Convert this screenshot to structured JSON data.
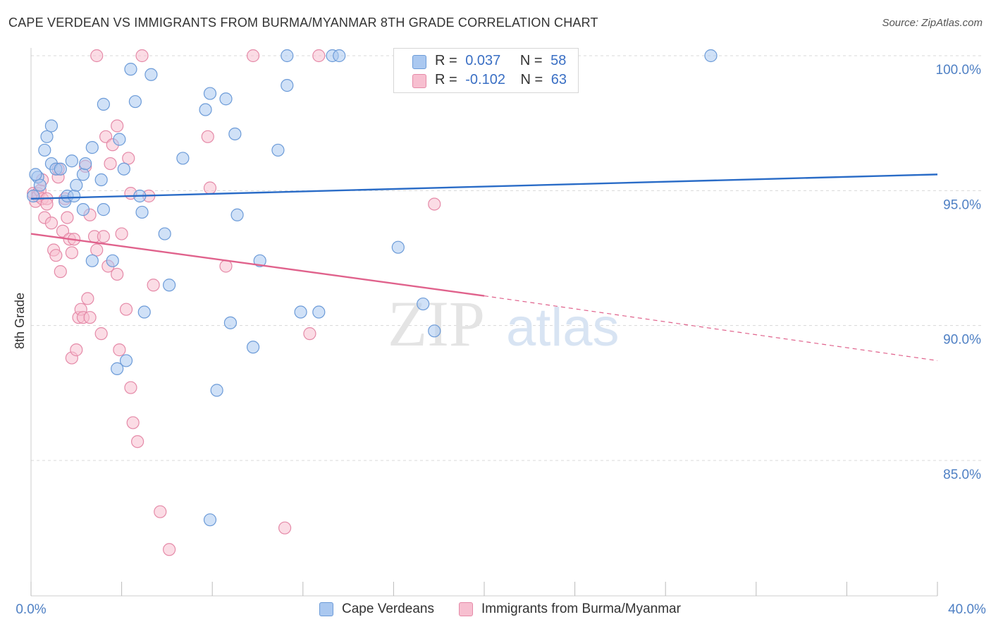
{
  "header": {
    "title": "CAPE VERDEAN VS IMMIGRANTS FROM BURMA/MYANMAR 8TH GRADE CORRELATION CHART",
    "source": "Source: ZipAtlas.com"
  },
  "legend": {
    "series1": {
      "r_label": "R =",
      "r_value": "0.037",
      "n_label": "N =",
      "n_value": "58"
    },
    "series2": {
      "r_label": "R =",
      "r_value": "-0.102",
      "n_label": "N =",
      "n_value": "63"
    }
  },
  "bottom_legend": {
    "series1": "Cape Verdeans",
    "series2": "Immigrants from Burma/Myanmar"
  },
  "watermark": {
    "zip": "ZIP",
    "atlas": "atlas"
  },
  "colors": {
    "blue_fill": "#aac8f0",
    "blue_stroke": "#6c9bd8",
    "blue_line": "#2a6cc7",
    "pink_fill": "#f7bfd0",
    "pink_stroke": "#e58aa8",
    "pink_line": "#e0628c",
    "grid": "#d8d8d8",
    "tick_text": "#4f80c4"
  },
  "chart_data": {
    "type": "scatter",
    "title": "CAPE VERDEAN VS IMMIGRANTS FROM BURMA/MYANMAR 8TH GRADE CORRELATION CHART",
    "xlabel": "",
    "ylabel": "8th Grade",
    "xlim": [
      0,
      40
    ],
    "ylim": [
      80.5,
      101
    ],
    "x_tick_labels": [
      "0.0%",
      "40.0%"
    ],
    "y_ticks": [
      85,
      90,
      95,
      100
    ],
    "y_tick_labels": [
      "85.0%",
      "90.0%",
      "95.0%",
      "100.0%"
    ],
    "grid": true,
    "series": [
      {
        "name": "Cape Verdeans",
        "R": 0.037,
        "N": 58,
        "trend": {
          "x": [
            0,
            40
          ],
          "y": [
            94.7,
            95.6
          ],
          "style": "solid"
        },
        "points": [
          [
            0.1,
            94.8
          ],
          [
            0.3,
            95.5
          ],
          [
            0.4,
            95.2
          ],
          [
            0.6,
            96.5
          ],
          [
            0.7,
            97.0
          ],
          [
            0.9,
            96.0
          ],
          [
            0.9,
            97.4
          ],
          [
            1.1,
            95.8
          ],
          [
            1.3,
            95.8
          ],
          [
            1.5,
            94.6
          ],
          [
            1.6,
            94.8
          ],
          [
            1.8,
            96.1
          ],
          [
            1.9,
            94.8
          ],
          [
            2.0,
            95.2
          ],
          [
            2.3,
            95.6
          ],
          [
            2.3,
            94.3
          ],
          [
            2.4,
            96.0
          ],
          [
            2.7,
            96.6
          ],
          [
            2.7,
            92.4
          ],
          [
            3.1,
            95.4
          ],
          [
            3.2,
            94.3
          ],
          [
            3.2,
            98.2
          ],
          [
            3.6,
            92.4
          ],
          [
            3.8,
            88.4
          ],
          [
            3.9,
            96.9
          ],
          [
            4.1,
            95.8
          ],
          [
            4.2,
            88.7
          ],
          [
            4.4,
            99.5
          ],
          [
            4.6,
            98.3
          ],
          [
            4.8,
            94.8
          ],
          [
            4.9,
            94.2
          ],
          [
            5.0,
            90.5
          ],
          [
            5.3,
            99.3
          ],
          [
            5.9,
            93.4
          ],
          [
            6.1,
            91.5
          ],
          [
            6.7,
            96.2
          ],
          [
            7.7,
            98.0
          ],
          [
            7.9,
            98.6
          ],
          [
            7.9,
            82.8
          ],
          [
            8.2,
            87.6
          ],
          [
            8.6,
            98.4
          ],
          [
            8.8,
            90.1
          ],
          [
            9.0,
            97.1
          ],
          [
            9.1,
            94.1
          ],
          [
            9.8,
            89.2
          ],
          [
            10.1,
            92.4
          ],
          [
            10.9,
            96.5
          ],
          [
            11.3,
            98.9
          ],
          [
            11.3,
            100.0
          ],
          [
            11.9,
            90.5
          ],
          [
            12.7,
            90.5
          ],
          [
            13.3,
            100.0
          ],
          [
            13.6,
            100.0
          ],
          [
            16.2,
            92.9
          ],
          [
            17.3,
            90.8
          ],
          [
            17.8,
            89.8
          ],
          [
            30.0,
            100.0
          ],
          [
            0.2,
            95.6
          ]
        ]
      },
      {
        "name": "Immigrants from Burma/Myanmar",
        "R": -0.102,
        "N": 63,
        "trend": {
          "x": [
            0,
            20
          ],
          "y": [
            93.4,
            91.1
          ],
          "style": "solid",
          "dashed_extension_to": [
            40,
            88.7
          ]
        },
        "points": [
          [
            0.1,
            94.9
          ],
          [
            0.2,
            94.6
          ],
          [
            0.3,
            94.9
          ],
          [
            0.3,
            94.8
          ],
          [
            0.4,
            95.0
          ],
          [
            0.5,
            94.7
          ],
          [
            0.5,
            95.4
          ],
          [
            0.6,
            94.0
          ],
          [
            0.7,
            94.7
          ],
          [
            0.7,
            94.5
          ],
          [
            0.9,
            93.8
          ],
          [
            1.0,
            92.8
          ],
          [
            1.1,
            92.6
          ],
          [
            1.2,
            95.5
          ],
          [
            1.3,
            92.0
          ],
          [
            1.4,
            93.5
          ],
          [
            1.5,
            94.7
          ],
          [
            1.6,
            94.0
          ],
          [
            1.7,
            93.2
          ],
          [
            1.8,
            88.8
          ],
          [
            1.8,
            92.7
          ],
          [
            1.9,
            93.2
          ],
          [
            2.0,
            89.1
          ],
          [
            2.1,
            90.3
          ],
          [
            2.2,
            90.6
          ],
          [
            2.3,
            90.3
          ],
          [
            2.4,
            95.9
          ],
          [
            2.5,
            91.0
          ],
          [
            2.6,
            90.3
          ],
          [
            2.6,
            94.1
          ],
          [
            2.8,
            93.3
          ],
          [
            2.9,
            92.8
          ],
          [
            3.1,
            89.7
          ],
          [
            3.2,
            93.3
          ],
          [
            3.3,
            97.0
          ],
          [
            3.4,
            92.2
          ],
          [
            3.5,
            96.0
          ],
          [
            3.6,
            96.7
          ],
          [
            3.8,
            97.4
          ],
          [
            3.8,
            91.9
          ],
          [
            3.9,
            89.1
          ],
          [
            4.0,
            93.4
          ],
          [
            4.2,
            90.6
          ],
          [
            4.3,
            96.2
          ],
          [
            4.4,
            87.7
          ],
          [
            4.4,
            94.9
          ],
          [
            4.5,
            86.4
          ],
          [
            4.7,
            85.7
          ],
          [
            4.9,
            100.0
          ],
          [
            5.2,
            94.8
          ],
          [
            5.4,
            91.5
          ],
          [
            5.7,
            83.1
          ],
          [
            6.1,
            81.7
          ],
          [
            2.9,
            100.0
          ],
          [
            7.8,
            97.0
          ],
          [
            7.9,
            95.1
          ],
          [
            8.6,
            92.2
          ],
          [
            9.8,
            100.0
          ],
          [
            11.2,
            82.5
          ],
          [
            12.3,
            89.7
          ],
          [
            12.7,
            100.0
          ],
          [
            17.8,
            94.5
          ],
          [
            1.2,
            95.8
          ]
        ]
      }
    ]
  }
}
